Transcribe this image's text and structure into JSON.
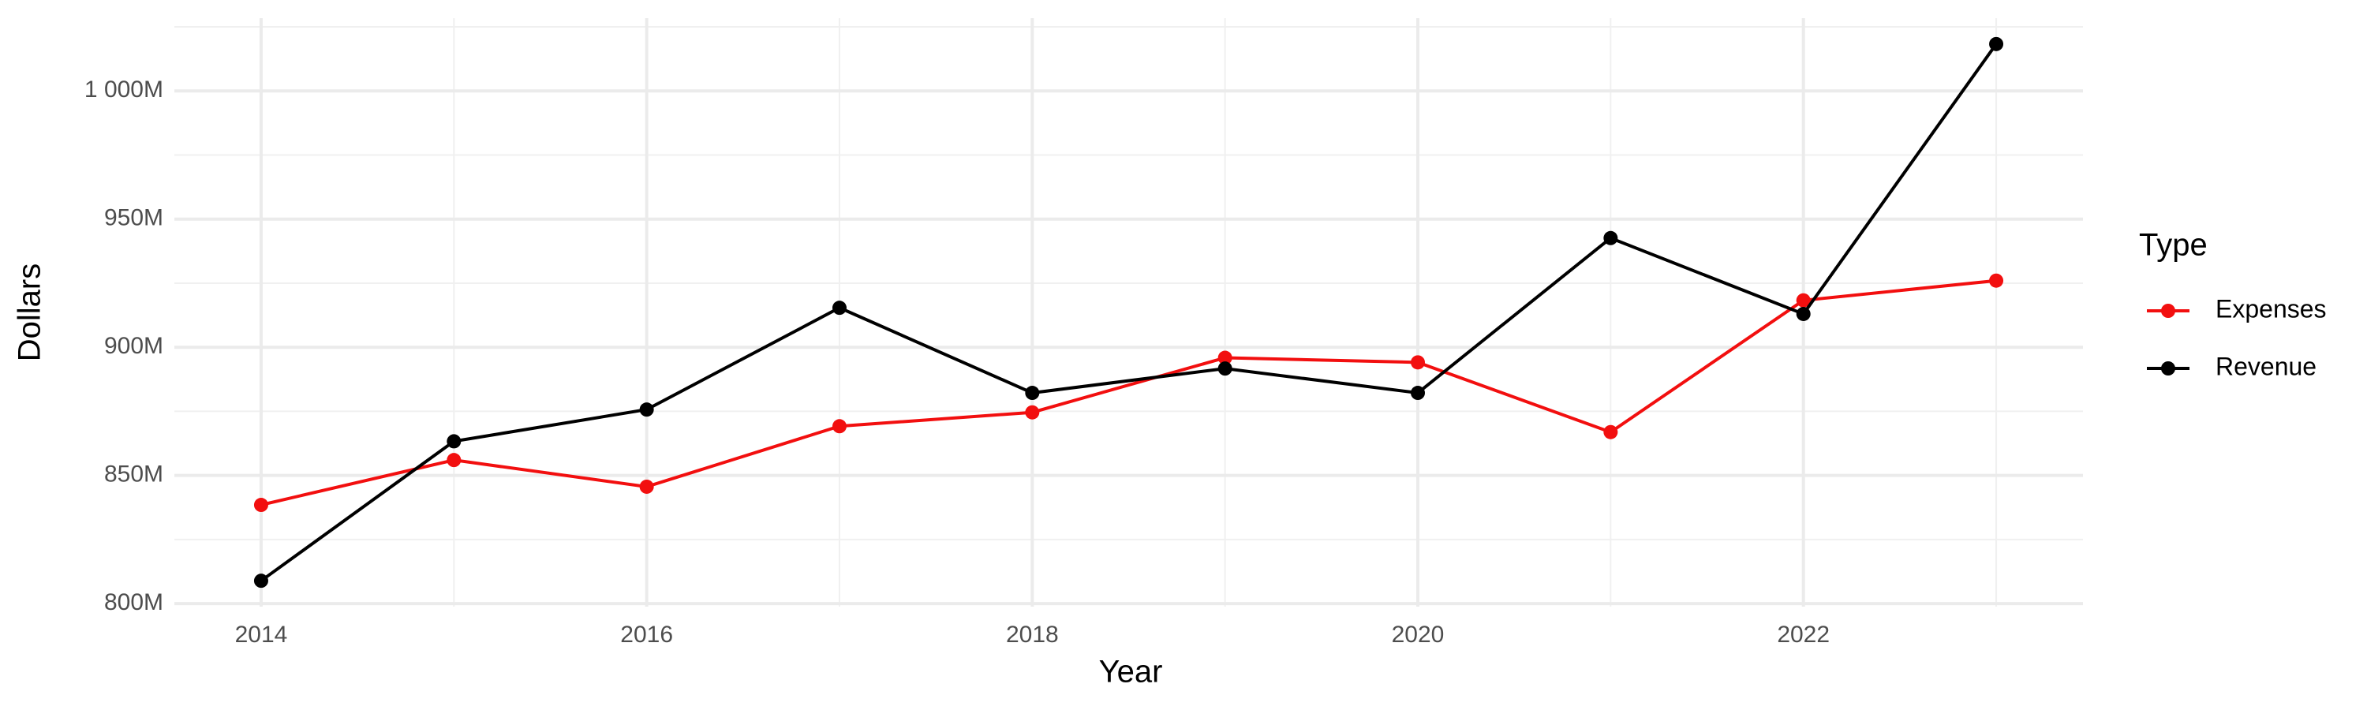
{
  "chart_data": {
    "type": "line",
    "x_label": "Year",
    "y_label": "Dollars",
    "legend_title": "Type",
    "x": [
      2014,
      2015,
      2016,
      2017,
      2018,
      2019,
      2020,
      2021,
      2022,
      2023
    ],
    "series": [
      {
        "name": "Expenses",
        "color": "#f20f0f",
        "values": [
          838.5,
          856,
          845.6,
          869.2,
          874.6,
          895.9,
          894.1,
          866.9,
          918.3,
          926
        ]
      },
      {
        "name": "Revenue",
        "color": "#000000",
        "values": [
          808.9,
          863.3,
          875.7,
          915.4,
          882.2,
          891.7,
          882.2,
          942.6,
          913,
          1018.3
        ]
      }
    ],
    "xlim": [
      2013.55,
      2023.45
    ],
    "xticks": [
      2014,
      2016,
      2018,
      2020,
      2022
    ],
    "x_minor_ticks": [
      2015,
      2017,
      2019,
      2021,
      2023
    ],
    "ylim": [
      798.8,
      1028.4
    ],
    "yticks": [
      {
        "value": 800,
        "label": "800M"
      },
      {
        "value": 850,
        "label": "850M"
      },
      {
        "value": 900,
        "label": "900M"
      },
      {
        "value": 950,
        "label": "950M"
      },
      {
        "value": 1000,
        "label": "1 000M"
      }
    ],
    "y_minor_ticks": [
      825,
      875,
      925,
      975,
      1025
    ],
    "grid": true,
    "legend": "right"
  }
}
